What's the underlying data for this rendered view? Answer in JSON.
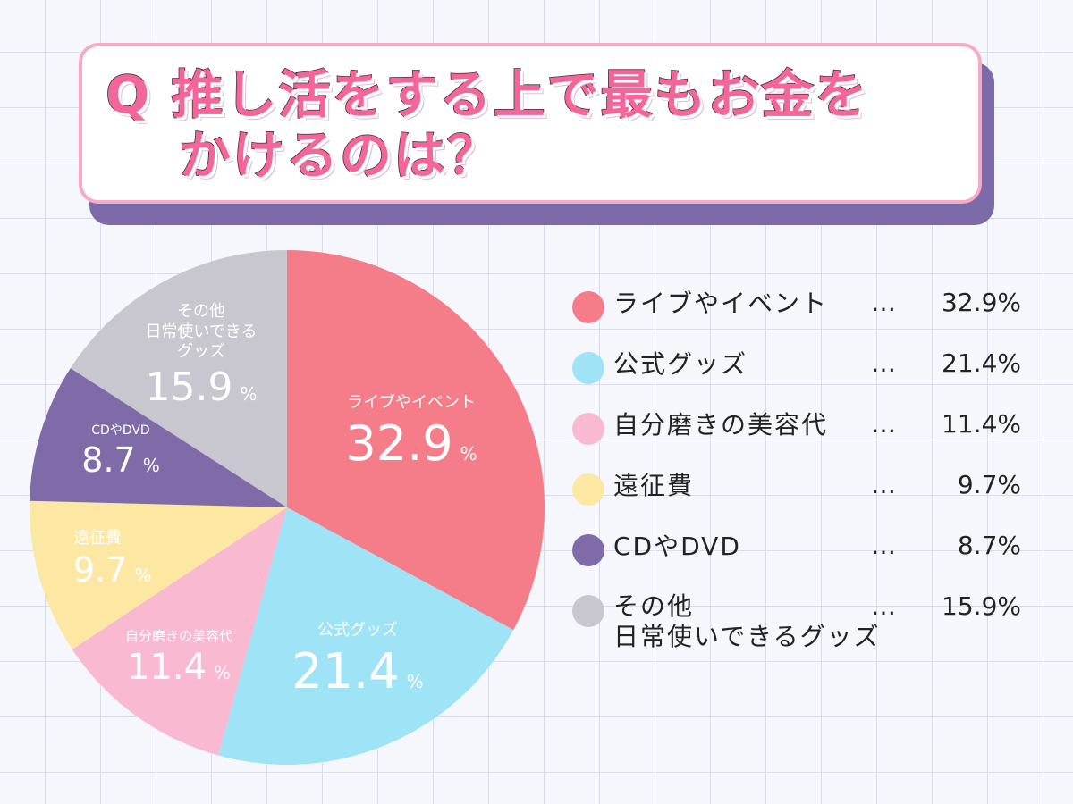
{
  "title": {
    "q": "Q",
    "line1": "推し活をする上で最もお金を",
    "line2": "かけるのは？"
  },
  "chart_data": {
    "type": "pie",
    "title": "Q 推し活をする上で最もお金をかけるのは？",
    "start": "top",
    "direction": "clockwise",
    "categories": [
      "ライブやイベント",
      "公式グッズ",
      "自分磨きの美容代",
      "遠征費",
      "CDやDVD",
      "その他 日常使いできるグッズ"
    ],
    "values": [
      32.9,
      21.4,
      11.4,
      9.7,
      8.7,
      15.9
    ],
    "colors": [
      "#f57d8a",
      "#9fe3f6",
      "#f9b9d0",
      "#fce8a3",
      "#7e6ba8",
      "#c8c6ce"
    ],
    "labels": [
      {
        "cat": "ライブやイベント",
        "val": "32.9",
        "pct": "%"
      },
      {
        "cat": "公式グッズ",
        "val": "21.4",
        "pct": "%"
      },
      {
        "cat": "自分磨きの美容代",
        "val": "11.4",
        "pct": "%"
      },
      {
        "cat": "遠征費",
        "val": "9.7",
        "pct": "%"
      },
      {
        "cat": "CDやDVD",
        "val": "8.7",
        "pct": "%"
      },
      {
        "cat1": "その他",
        "cat2": "日常使いできる",
        "cat3": "グッズ",
        "val": "15.9",
        "pct": "%"
      }
    ],
    "legend": [
      {
        "name": "ライブやイベント",
        "sep": "…",
        "value": "32.9%"
      },
      {
        "name": "公式グッズ",
        "sep": "…",
        "value": "21.4%"
      },
      {
        "name": "自分磨きの美容代",
        "sep": "…",
        "value": "11.4%"
      },
      {
        "name": "遠征費",
        "sep": "…",
        "value": "9.7%"
      },
      {
        "name": "CDやDVD",
        "sep": "…",
        "value": "8.7%"
      },
      {
        "name": "その他",
        "name2": "日常使いできるグッズ",
        "sep": "…",
        "value": "15.9%"
      }
    ],
    "legend_position": "right"
  }
}
